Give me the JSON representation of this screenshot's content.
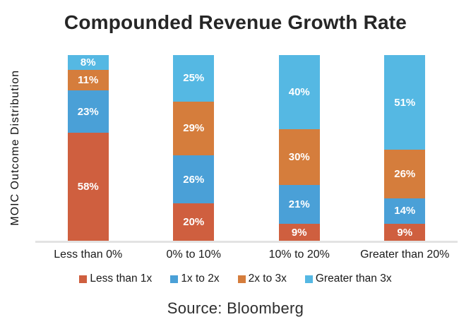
{
  "page": {
    "title": "Compounded Revenue Growth Rate",
    "source_caption": "Source: Bloomberg"
  },
  "colors": {
    "background": "#ffffff",
    "title_text": "#262626",
    "axis_text": "#1a1a1a",
    "baseline": "#e3e3e3",
    "segment_label_text": "#ffffff"
  },
  "chart_data": {
    "type": "bar",
    "stacked": true,
    "title": "Compounded Revenue Growth Rate",
    "ylabel": "MOIC Outcome Distribution",
    "xlabel": "",
    "categories": [
      "Less than 0%",
      "0% to 10%",
      "10% to 20%",
      "Greater than 20%"
    ],
    "series": [
      {
        "name": "Less than 1x",
        "color": "#CF5F3F",
        "values": [
          58,
          20,
          9,
          9
        ]
      },
      {
        "name": "1x to 2x",
        "color": "#4AA0D7",
        "values": [
          23,
          26,
          21,
          14
        ]
      },
      {
        "name": "2x to 3x",
        "color": "#D57D3C",
        "values": [
          11,
          29,
          30,
          26
        ]
      },
      {
        "name": "Greater than 3x",
        "color": "#55B8E3",
        "values": [
          8,
          25,
          40,
          51
        ]
      }
    ],
    "ylim": [
      0,
      100
    ],
    "value_suffix": "%",
    "value_labels_shown": true,
    "legend_position": "bottom",
    "grid": false,
    "source": "Source: Bloomberg"
  }
}
